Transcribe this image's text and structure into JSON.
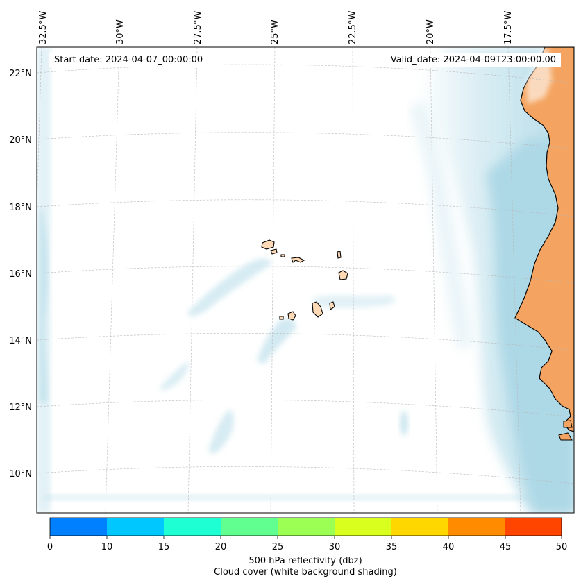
{
  "map": {
    "start_date": "Start date: 2024-04-07_00:00:00",
    "valid_date": "Valid_date: 2024-04-09T23:00:00.00",
    "lon_labels": [
      "32.5°W",
      "30°W",
      "27.5°W",
      "25°W",
      "22.5°W",
      "20°W",
      "17.5°W"
    ],
    "lat_labels": [
      "22°N",
      "20°N",
      "18°N",
      "16°N",
      "14°N",
      "12°N",
      "10°N"
    ],
    "colors": {
      "land": "#f4a460",
      "cloud": "#add8e6",
      "coastline": "#000000",
      "islands": "#fdd9b5"
    }
  },
  "colorbar": {
    "tick_labels": [
      "0",
      "10",
      "15",
      "20",
      "25",
      "30",
      "35",
      "40",
      "45",
      "50"
    ],
    "colors": [
      "#0080ff",
      "#00c8ff",
      "#1effd4",
      "#60ff8f",
      "#9cff54",
      "#d8ff1e",
      "#ffd700",
      "#ff8c00",
      "#ff4500"
    ],
    "caption_line1": "500 hPa reflectivity (dbz)",
    "caption_line2": "Cloud cover (white background shading)"
  }
}
